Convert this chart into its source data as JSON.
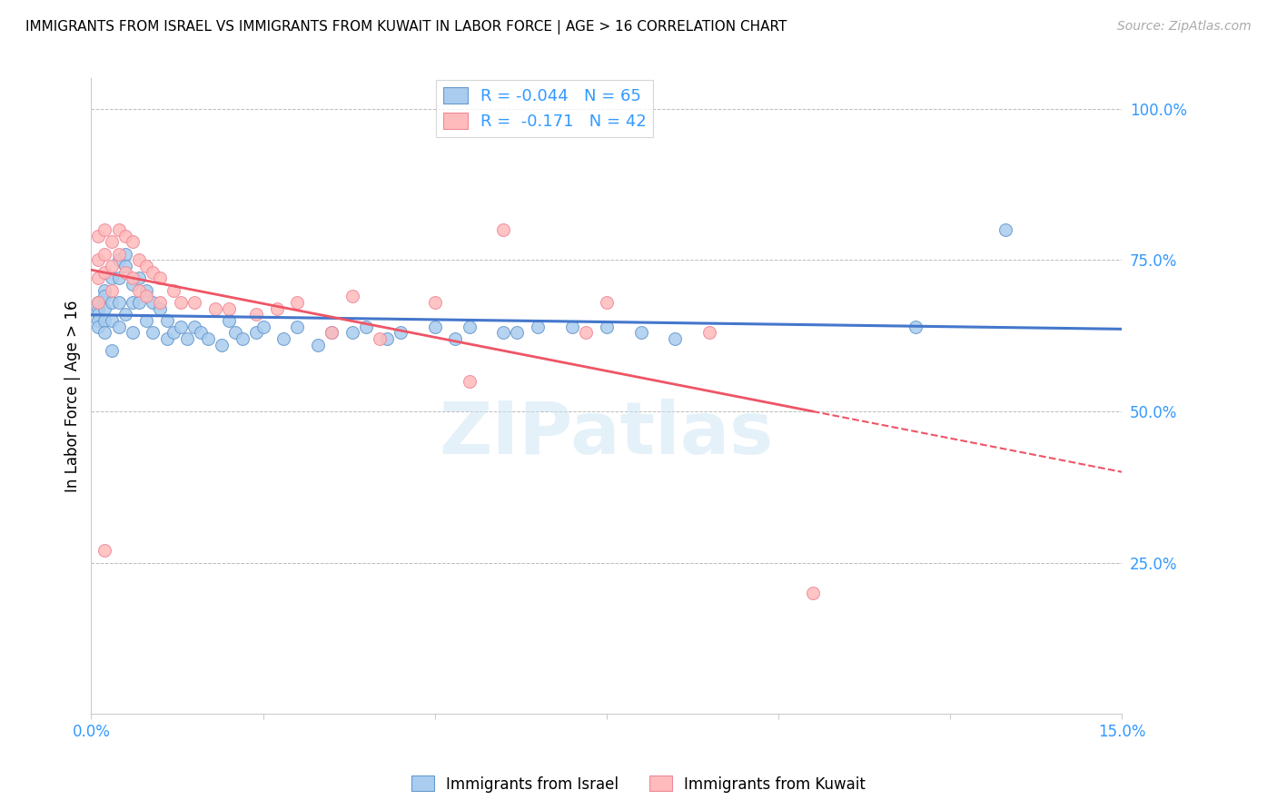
{
  "title": "IMMIGRANTS FROM ISRAEL VS IMMIGRANTS FROM KUWAIT IN LABOR FORCE | AGE > 16 CORRELATION CHART",
  "source": "Source: ZipAtlas.com",
  "ylabel_label": "In Labor Force | Age > 16",
  "right_yticklabels": [
    "",
    "25.0%",
    "50.0%",
    "75.0%",
    "100.0%"
  ],
  "right_ytick_vals": [
    0.0,
    0.25,
    0.5,
    0.75,
    1.0
  ],
  "xlim": [
    0.0,
    0.15
  ],
  "ylim": [
    0.0,
    1.05
  ],
  "israel_color": "#aaccee",
  "israel_edge": "#6699cc",
  "kuwait_color": "#ffbbbb",
  "kuwait_edge": "#ee8899",
  "trendline_israel_color": "#4477cc",
  "trendline_kuwait_color": "#ee5566",
  "watermark": "ZIPatlas",
  "legend_R_color": "#3399ff",
  "legend_N_color": "#3399ff",
  "israel_x": [
    0.001,
    0.001,
    0.001,
    0.001,
    0.001,
    0.002,
    0.002,
    0.002,
    0.002,
    0.002,
    0.003,
    0.003,
    0.003,
    0.003,
    0.004,
    0.004,
    0.004,
    0.004,
    0.005,
    0.005,
    0.005,
    0.006,
    0.006,
    0.006,
    0.007,
    0.007,
    0.008,
    0.008,
    0.009,
    0.009,
    0.01,
    0.011,
    0.011,
    0.012,
    0.013,
    0.014,
    0.015,
    0.016,
    0.017,
    0.019,
    0.02,
    0.021,
    0.022,
    0.024,
    0.025,
    0.028,
    0.03,
    0.033,
    0.035,
    0.038,
    0.04,
    0.043,
    0.045,
    0.05,
    0.053,
    0.055,
    0.06,
    0.062,
    0.065,
    0.07,
    0.075,
    0.08,
    0.085,
    0.12,
    0.133
  ],
  "israel_y": [
    0.67,
    0.66,
    0.65,
    0.64,
    0.68,
    0.7,
    0.69,
    0.67,
    0.65,
    0.63,
    0.72,
    0.68,
    0.65,
    0.6,
    0.75,
    0.72,
    0.68,
    0.64,
    0.76,
    0.74,
    0.66,
    0.71,
    0.68,
    0.63,
    0.72,
    0.68,
    0.7,
    0.65,
    0.68,
    0.63,
    0.67,
    0.65,
    0.62,
    0.63,
    0.64,
    0.62,
    0.64,
    0.63,
    0.62,
    0.61,
    0.65,
    0.63,
    0.62,
    0.63,
    0.64,
    0.62,
    0.64,
    0.61,
    0.63,
    0.63,
    0.64,
    0.62,
    0.63,
    0.64,
    0.62,
    0.64,
    0.63,
    0.63,
    0.64,
    0.64,
    0.64,
    0.63,
    0.62,
    0.64,
    0.8
  ],
  "kuwait_x": [
    0.001,
    0.001,
    0.001,
    0.001,
    0.002,
    0.002,
    0.002,
    0.003,
    0.003,
    0.003,
    0.004,
    0.004,
    0.005,
    0.005,
    0.006,
    0.006,
    0.007,
    0.007,
    0.008,
    0.008,
    0.009,
    0.01,
    0.01,
    0.012,
    0.013,
    0.015,
    0.018,
    0.02,
    0.024,
    0.03,
    0.002,
    0.038,
    0.05,
    0.06,
    0.075,
    0.09,
    0.072,
    0.027,
    0.035,
    0.042,
    0.055,
    0.105
  ],
  "kuwait_y": [
    0.68,
    0.75,
    0.79,
    0.72,
    0.8,
    0.76,
    0.73,
    0.78,
    0.74,
    0.7,
    0.8,
    0.76,
    0.79,
    0.73,
    0.78,
    0.72,
    0.75,
    0.7,
    0.74,
    0.69,
    0.73,
    0.72,
    0.68,
    0.7,
    0.68,
    0.68,
    0.67,
    0.67,
    0.66,
    0.68,
    0.27,
    0.69,
    0.68,
    0.8,
    0.68,
    0.63,
    0.63,
    0.67,
    0.63,
    0.62,
    0.55,
    0.2
  ]
}
